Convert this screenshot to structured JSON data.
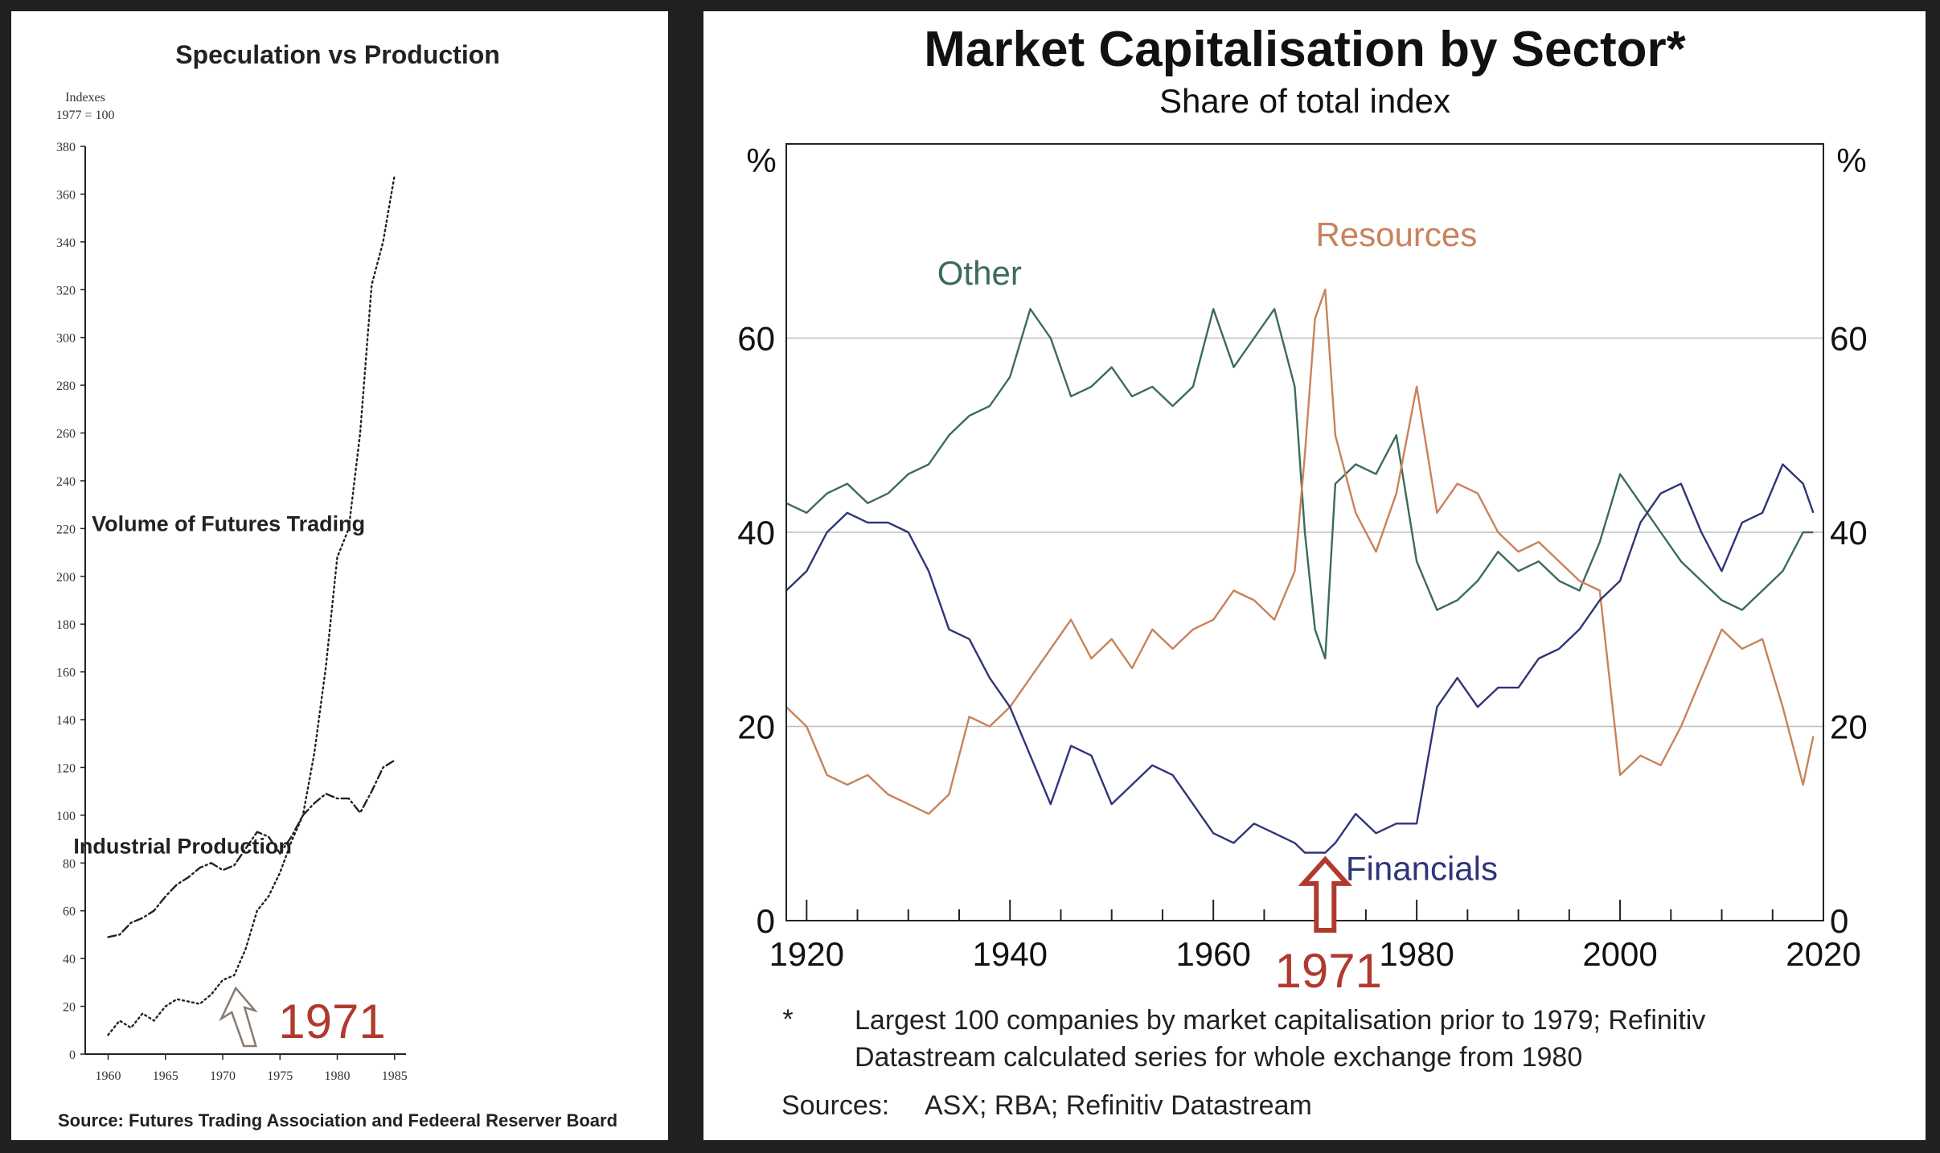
{
  "left_chart": {
    "title": "Speculation vs Production",
    "ylabel_line1": "Indexes",
    "ylabel_line2": "1977 = 100",
    "source": "Source: Futures Trading Association and Fedeeral Reserver Board",
    "annotation": "1971",
    "annotation_year": 1971,
    "colors": {
      "line": "#222222",
      "annotation": "#b03a2e"
    }
  },
  "right_chart": {
    "title": "Market Capitalisation by Sector*",
    "subtitle": "Share of total index",
    "left_unit": "%",
    "right_unit": "%",
    "annotation": "1971",
    "annotation_year": 1971,
    "footnote_marker": "*",
    "footnote_line1": "Largest 100 companies by market capitalisation prior to 1979; Refinitiv",
    "footnote_line2": "Datastream calculated series for whole exchange from 1980",
    "sources_label": "Sources:",
    "sources_text": "ASX; RBA; Refinitiv Datastream",
    "colors": {
      "Other": "#3c6b5b",
      "Resources": "#c9825a",
      "Financials": "#2f3578",
      "grid": "#bdbdbd",
      "annotation": "#b03a2e"
    }
  },
  "chart_data": [
    {
      "type": "line",
      "title": "Speculation vs Production",
      "ylabel": "Indexes 1977 = 100",
      "xlim": [
        1958,
        1986
      ],
      "ylim": [
        0,
        380
      ],
      "x_ticks": [
        1960,
        1965,
        1970,
        1975,
        1980,
        1985
      ],
      "y_ticks": [
        0,
        20,
        40,
        60,
        80,
        100,
        120,
        140,
        160,
        180,
        200,
        220,
        240,
        260,
        280,
        300,
        320,
        340,
        360,
        380
      ],
      "series": [
        {
          "name": "Volume of Futures Trading",
          "style": "dotted",
          "x": [
            1960,
            1961,
            1962,
            1963,
            1964,
            1965,
            1966,
            1967,
            1968,
            1969,
            1970,
            1971,
            1972,
            1973,
            1974,
            1975,
            1976,
            1977,
            1978,
            1979,
            1980,
            1981,
            1982,
            1983,
            1984,
            1985
          ],
          "y": [
            8,
            14,
            11,
            17,
            14,
            20,
            23,
            22,
            21,
            25,
            31,
            33,
            44,
            60,
            66,
            76,
            89,
            100,
            126,
            162,
            208,
            220,
            260,
            322,
            340,
            368
          ]
        },
        {
          "name": "Industrial Production",
          "style": "dash-dot",
          "x": [
            1960,
            1961,
            1962,
            1963,
            1964,
            1965,
            1966,
            1967,
            1968,
            1969,
            1970,
            1971,
            1972,
            1973,
            1974,
            1975,
            1976,
            1977,
            1978,
            1979,
            1980,
            1981,
            1982,
            1983,
            1984,
            1985
          ],
          "y": [
            49,
            50,
            55,
            57,
            60,
            66,
            71,
            74,
            78,
            80,
            77,
            79,
            86,
            93,
            91,
            84,
            91,
            100,
            105,
            109,
            107,
            107,
            101,
            110,
            120,
            123
          ]
        }
      ]
    },
    {
      "type": "line",
      "title": "Market Capitalisation by Sector*",
      "subtitle": "Share of total index",
      "ylabel": "%",
      "xlim": [
        1918,
        2020
      ],
      "ylim": [
        0,
        80
      ],
      "x_ticks": [
        1920,
        1940,
        1960,
        1980,
        2000,
        2020
      ],
      "y_ticks": [
        0,
        20,
        40,
        60
      ],
      "series": [
        {
          "name": "Other",
          "x": [
            1918,
            1920,
            1922,
            1924,
            1926,
            1928,
            1930,
            1932,
            1934,
            1936,
            1938,
            1940,
            1942,
            1944,
            1946,
            1948,
            1950,
            1952,
            1954,
            1956,
            1958,
            1960,
            1962,
            1964,
            1966,
            1968,
            1969,
            1970,
            1971,
            1972,
            1974,
            1976,
            1978,
            1980,
            1982,
            1984,
            1986,
            1988,
            1990,
            1992,
            1994,
            1996,
            1998,
            2000,
            2002,
            2004,
            2006,
            2008,
            2010,
            2012,
            2014,
            2016,
            2018,
            2019
          ],
          "y": [
            43,
            42,
            44,
            45,
            43,
            44,
            46,
            47,
            50,
            52,
            53,
            56,
            63,
            60,
            54,
            55,
            57,
            54,
            55,
            53,
            55,
            63,
            57,
            60,
            63,
            55,
            40,
            30,
            27,
            45,
            47,
            46,
            50,
            37,
            32,
            33,
            35,
            38,
            36,
            37,
            35,
            34,
            39,
            46,
            43,
            40,
            37,
            35,
            33,
            32,
            34,
            36,
            40,
            40
          ]
        },
        {
          "name": "Resources",
          "x": [
            1918,
            1920,
            1922,
            1924,
            1926,
            1928,
            1930,
            1932,
            1934,
            1936,
            1938,
            1940,
            1942,
            1944,
            1946,
            1948,
            1950,
            1952,
            1954,
            1956,
            1958,
            1960,
            1962,
            1964,
            1966,
            1968,
            1969,
            1970,
            1971,
            1972,
            1974,
            1976,
            1978,
            1980,
            1982,
            1984,
            1986,
            1988,
            1990,
            1992,
            1994,
            1996,
            1998,
            2000,
            2002,
            2004,
            2006,
            2008,
            2010,
            2012,
            2014,
            2016,
            2018,
            2019
          ],
          "y": [
            22,
            20,
            15,
            14,
            15,
            13,
            12,
            11,
            13,
            21,
            20,
            22,
            25,
            28,
            31,
            27,
            29,
            26,
            30,
            28,
            30,
            31,
            34,
            33,
            31,
            36,
            48,
            62,
            65,
            50,
            42,
            38,
            44,
            55,
            42,
            45,
            44,
            40,
            38,
            39,
            37,
            35,
            34,
            15,
            17,
            16,
            20,
            25,
            30,
            28,
            29,
            22,
            14,
            19
          ]
        },
        {
          "name": "Financials",
          "x": [
            1918,
            1920,
            1922,
            1924,
            1926,
            1928,
            1930,
            1932,
            1934,
            1936,
            1938,
            1940,
            1942,
            1944,
            1946,
            1948,
            1950,
            1952,
            1954,
            1956,
            1958,
            1960,
            1962,
            1964,
            1966,
            1968,
            1969,
            1970,
            1971,
            1972,
            1974,
            1976,
            1978,
            1980,
            1982,
            1984,
            1986,
            1988,
            1990,
            1992,
            1994,
            1996,
            1998,
            2000,
            2002,
            2004,
            2006,
            2008,
            2010,
            2012,
            2014,
            2016,
            2018,
            2019
          ],
          "y": [
            34,
            36,
            40,
            42,
            41,
            41,
            40,
            36,
            30,
            29,
            25,
            22,
            17,
            12,
            18,
            17,
            12,
            14,
            16,
            15,
            12,
            9,
            8,
            10,
            9,
            8,
            7,
            7,
            7,
            8,
            11,
            9,
            10,
            10,
            22,
            25,
            22,
            24,
            24,
            27,
            28,
            30,
            33,
            35,
            41,
            44,
            45,
            40,
            36,
            41,
            42,
            47,
            45,
            42
          ]
        }
      ]
    }
  ]
}
